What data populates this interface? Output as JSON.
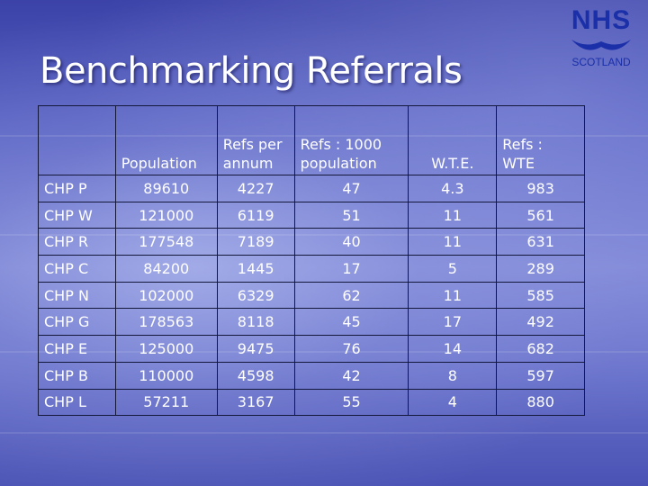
{
  "slide": {
    "title": "Benchmarking Referrals"
  },
  "logo": {
    "brand": "NHS",
    "region": "SCOTLAND",
    "color": "#1a2fa8"
  },
  "table": {
    "headers": [
      "",
      "Population",
      "Refs per annum",
      "Refs : 1000 population",
      "W.T.E.",
      "Refs : WTE"
    ],
    "rows": [
      [
        "CHP P",
        "89610",
        "4227",
        "47",
        "4.3",
        "983"
      ],
      [
        "CHP W",
        "121000",
        "6119",
        "51",
        "11",
        "561"
      ],
      [
        "CHP R",
        "177548",
        "7189",
        "40",
        "11",
        "631"
      ],
      [
        "CHP C",
        "84200",
        "1445",
        "17",
        "5",
        "289"
      ],
      [
        "CHP N",
        "102000",
        "6329",
        "62",
        "11",
        "585"
      ],
      [
        "CHP G",
        "178563",
        "8118",
        "45",
        "17",
        "492"
      ],
      [
        "CHP E",
        "125000",
        "9475",
        "76",
        "14",
        "682"
      ],
      [
        "CHP B",
        "110000",
        "4598",
        "42",
        "8",
        "597"
      ],
      [
        "CHP L",
        "57211",
        "3167",
        "55",
        "4",
        "880"
      ]
    ]
  }
}
